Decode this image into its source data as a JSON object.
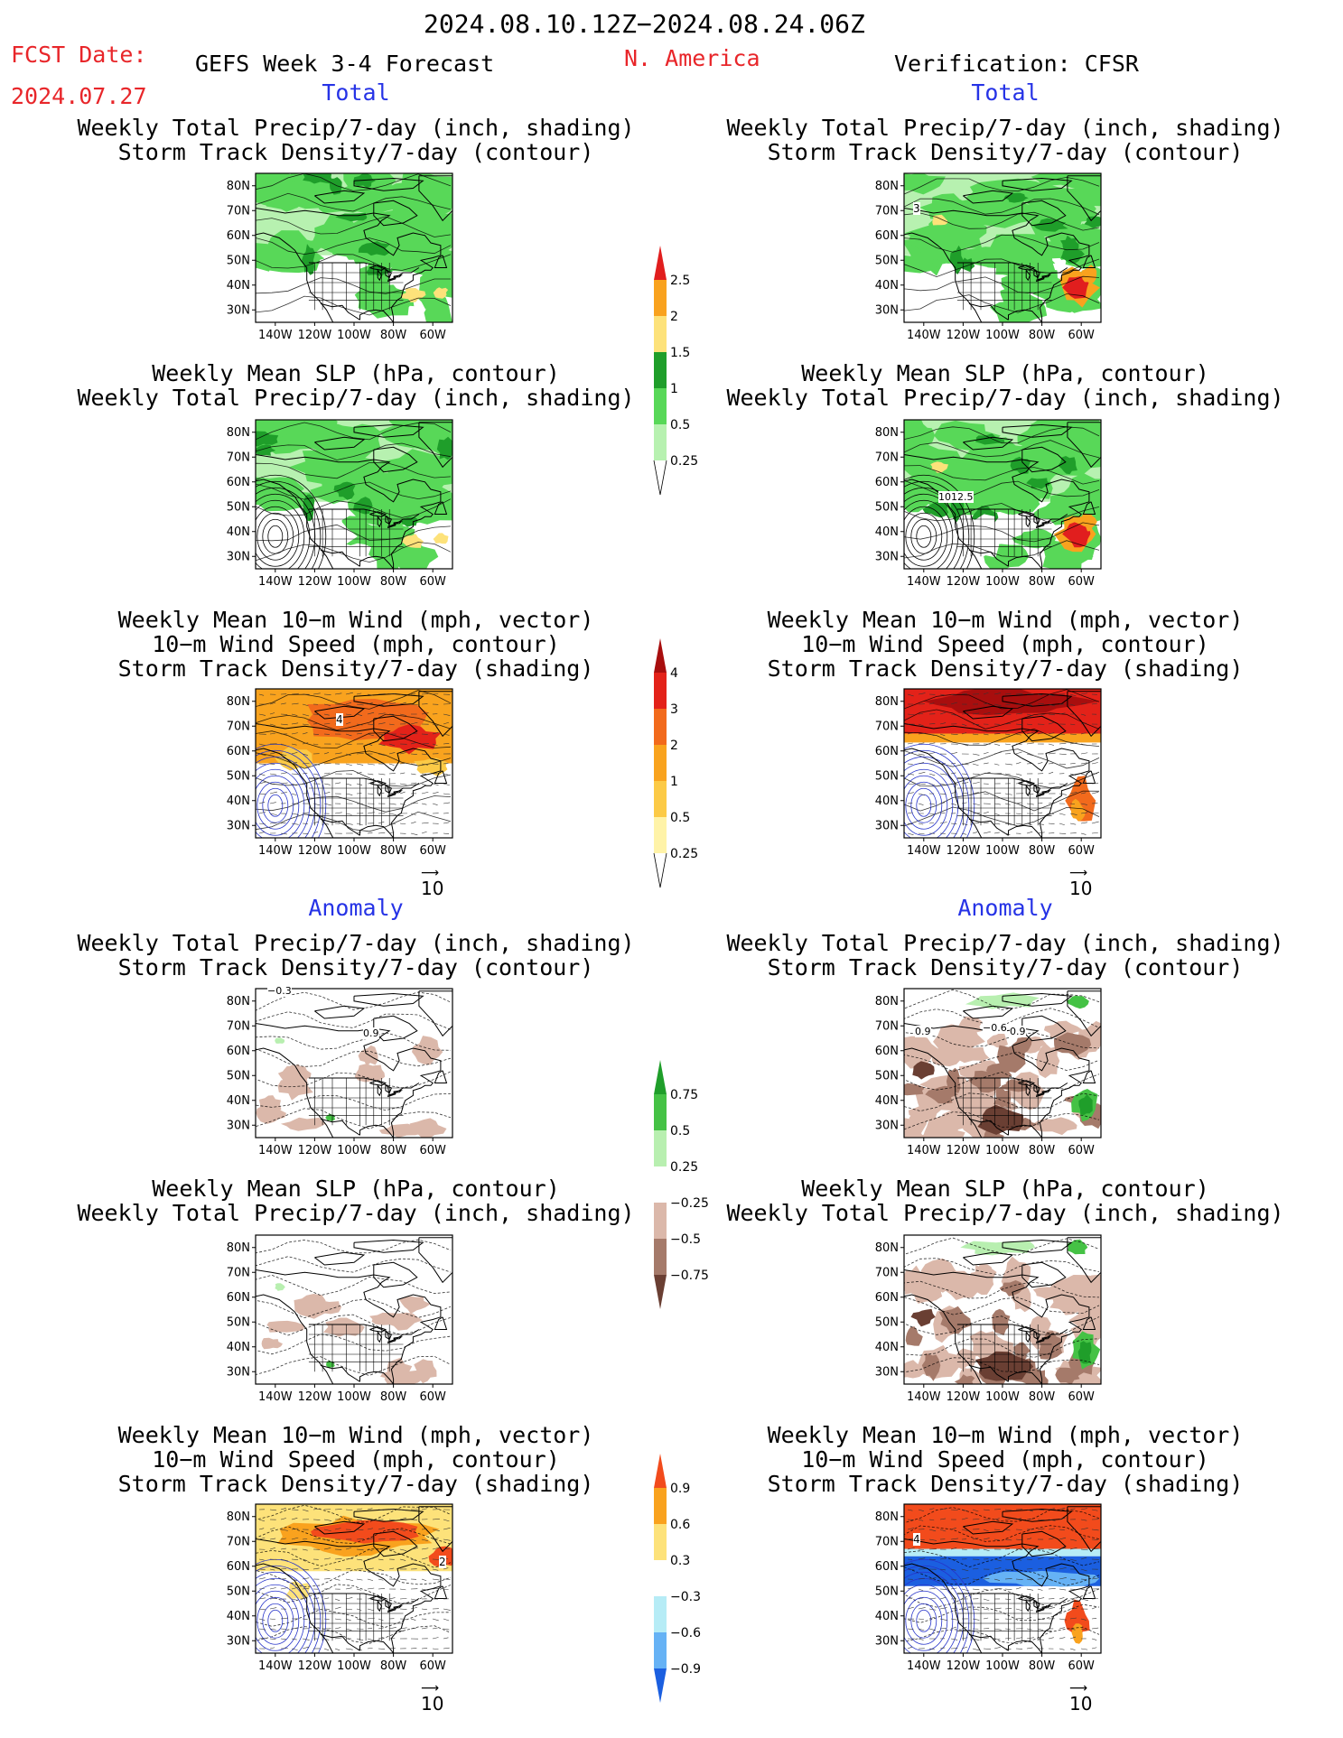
{
  "header": {
    "period": "2024.08.10.12Z−2024.08.24.06Z",
    "fcst_label": "FCST Date:",
    "fcst_date": "2024.07.27",
    "forecast_title": "GEFS Week 3-4 Forecast",
    "region": "N. America",
    "verification": "Verification: CFSR"
  },
  "sections": {
    "total": "Total",
    "anomaly": "Anomaly"
  },
  "panel_titles": {
    "precip_storm": [
      "Weekly Total Precip/7-day (inch, shading)",
      "Storm Track Density/7-day (contour)"
    ],
    "slp_precip": [
      "Weekly Mean SLP (hPa, contour)",
      "Weekly Total Precip/7-day (inch, shading)"
    ],
    "wind_storm": [
      "Weekly Mean 10−m Wind (mph, vector)",
      "10−m Wind Speed (mph, contour)",
      "Storm Track Density/7-day (shading)"
    ]
  },
  "axes": {
    "lat_ticks": [
      "80N",
      "70N",
      "60N",
      "50N",
      "40N",
      "30N"
    ],
    "lon_ticks": [
      "140W",
      "120W",
      "100W",
      "80W",
      "60W"
    ]
  },
  "vector_key": "10",
  "colorbars": {
    "precip_total": {
      "labels": [
        "2.5",
        "2",
        "1.5",
        "1",
        "0.5",
        "0.25"
      ],
      "colors": [
        "#e11e1e",
        "#f9a21e",
        "#fde27a",
        "#1f9e2a",
        "#58d858",
        "#b7f1b0"
      ]
    },
    "storm_total": {
      "labels": [
        "4",
        "3",
        "2",
        "1",
        "0.5",
        "0.25"
      ],
      "colors": [
        "#a80e0e",
        "#e32219",
        "#f26a1c",
        "#f9a31e",
        "#fcca46",
        "#fff3a8"
      ]
    },
    "precip_anom": {
      "labels": [
        "0.75",
        "0.5",
        "0.25",
        "−0.25",
        "−0.5",
        "−0.75"
      ],
      "colors": [
        "#1f9e2a",
        "#45c245",
        "#b8efb0",
        "#ffffff",
        "#dbb8aa",
        "#a57a6a",
        "#6a3f33"
      ]
    },
    "storm_anom": {
      "labels": [
        "0.9",
        "0.6",
        "0.3",
        "−0.3",
        "−0.6",
        "−0.9"
      ],
      "colors": [
        "#f24b1c",
        "#f9a21e",
        "#fde27a",
        "#ffffff",
        "#b6ecf6",
        "#66b2f5",
        "#1b5fe0"
      ]
    }
  },
  "contour_labels": {
    "obs_storm_total": "3",
    "obs_slp": "1012.5",
    "fcst_wind_total": "4",
    "fcst_precip_anom_a": "−0.3",
    "fcst_precip_anom_b": "0.9",
    "obs_precip_anom_a": "0.9",
    "obs_precip_anom_b": "−0.6",
    "obs_precip_anom_c": "0.9",
    "fcst_wind_anom": "2",
    "obs_wind_anom": "4"
  },
  "colors": {
    "land_outline": "#000000",
    "contour_blue": "#2633c9",
    "frame": "#000000"
  }
}
